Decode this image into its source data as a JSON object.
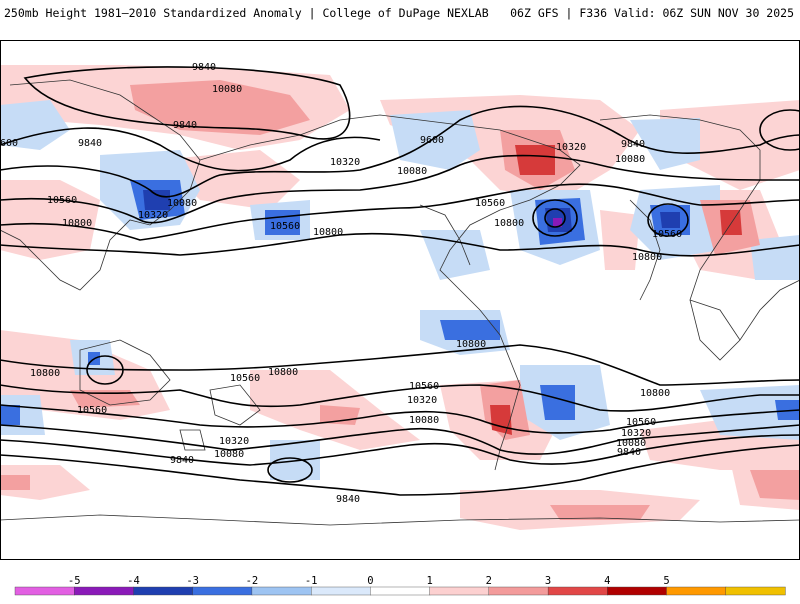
{
  "header": {
    "left_title": "250mb Height 1981–2010 Standardized Anomaly | College of DuPage NEXLAB",
    "right_title": "06Z GFS | F336 Valid: 06Z SUN NOV 30 2025"
  },
  "colorbar": {
    "ticks": [
      "-5",
      "-4",
      "-3",
      "-2",
      "-1",
      "0",
      "1",
      "2",
      "3",
      "4",
      "5"
    ],
    "colors": [
      "#e25fe2",
      "#8a1ab8",
      "#1f3fb0",
      "#3a6fe0",
      "#9ec4f2",
      "#dbe9fb",
      "#ffffff",
      "#fcd0d0",
      "#f39b9b",
      "#e14747",
      "#b00000",
      "#ff9900",
      "#f0c000"
    ]
  },
  "contour_labels": [
    "9840",
    "10080",
    "9840",
    "600",
    "9840",
    "10560",
    "10800",
    "10080",
    "10320",
    "10560",
    "10800",
    "10320",
    "10080",
    "9600",
    "10560",
    "10320",
    "10800",
    "10080",
    "9840",
    "10560",
    "10800",
    "10800",
    "10800",
    "10560",
    "10800",
    "10560",
    "10320",
    "10080",
    "9840",
    "10560",
    "10320",
    "10080",
    "10800",
    "10560",
    "10320",
    "10080",
    "9840",
    "9840"
  ],
  "colors": {
    "neg_strong": "#1f3fb0",
    "neg_mid": "#3a6fe0",
    "neg_weak": "#c6dcf6",
    "pos_weak": "#fcd4d4",
    "pos_mid": "#f3a0a0",
    "pos_strong": "#d63a3a",
    "contour": "#000000",
    "coast": "#333333"
  }
}
